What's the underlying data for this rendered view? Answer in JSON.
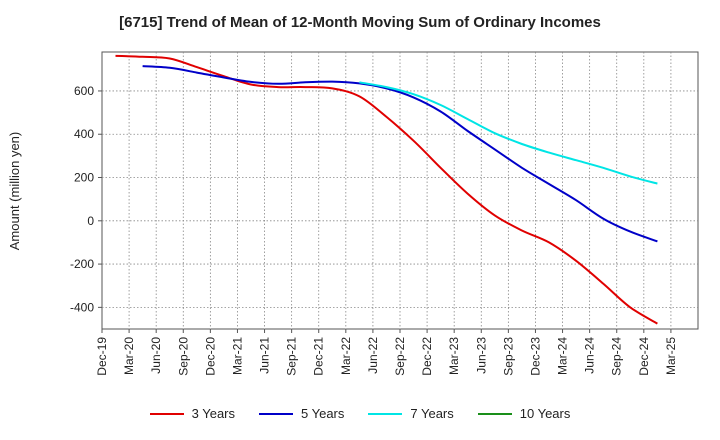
{
  "chart_data": {
    "type": "line",
    "title": "[6715]  Trend of Mean of 12-Month Moving Sum of Ordinary Incomes",
    "xlabel": "",
    "ylabel": "Amount (million yen)",
    "ylim": [
      -500,
      780
    ],
    "yticks": [
      -400,
      -200,
      0,
      200,
      400,
      600
    ],
    "grid": true,
    "legend_position": "bottom-center",
    "x": [
      "Dec-19",
      "Mar-20",
      "Jun-20",
      "Sep-20",
      "Dec-20",
      "Mar-21",
      "Jun-21",
      "Sep-21",
      "Dec-21",
      "Mar-22",
      "Jun-22",
      "Sep-22",
      "Dec-22",
      "Mar-23",
      "Jun-23",
      "Sep-23",
      "Dec-23",
      "Mar-24",
      "Jun-24",
      "Sep-24",
      "Dec-24",
      "Mar-25"
    ],
    "series": [
      {
        "name": "3 Years",
        "color": "#e00000",
        "values": [
          762,
          758,
          750,
          710,
          668,
          630,
          618,
          618,
          612,
          575,
          480,
          370,
          245,
          125,
          25,
          -45,
          -100,
          -185,
          -290,
          -400,
          -475,
          null
        ]
      },
      {
        "name": "5 Years",
        "color": "#0000c8",
        "values": [
          null,
          715,
          707,
          685,
          662,
          642,
          633,
          640,
          643,
          635,
          612,
          570,
          505,
          415,
          330,
          245,
          170,
          95,
          10,
          -50,
          -95,
          null
        ]
      },
      {
        "name": "7 Years",
        "color": "#00e5e5",
        "values": [
          null,
          null,
          null,
          null,
          null,
          null,
          null,
          null,
          null,
          640,
          618,
          585,
          535,
          470,
          405,
          355,
          315,
          280,
          245,
          205,
          172,
          null
        ]
      },
      {
        "name": "10 Years",
        "color": "#1a8f1a",
        "values": [
          null,
          null,
          null,
          null,
          null,
          null,
          null,
          null,
          null,
          null,
          null,
          null,
          null,
          null,
          null,
          null,
          null,
          null,
          null,
          null,
          null,
          null
        ]
      }
    ]
  }
}
